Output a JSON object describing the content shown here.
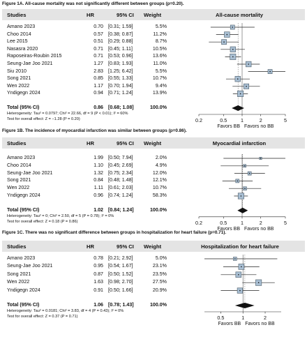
{
  "figures": [
    {
      "caption": "Figure 1A. All-cause mortality was not significantly different between groups (p=0.20).",
      "headers": {
        "study": "Studies",
        "hr": "HR",
        "ci": "95% CI",
        "weight": "Weight",
        "plot": "All-cause mortality"
      },
      "rows": [
        {
          "study": "Amano 2023",
          "hr": "0.70",
          "ci": "[0.31; 1.59]",
          "weight": "5.5%"
        },
        {
          "study": "Choo 2014",
          "hr": "0.57",
          "ci": "[0.38; 0.87]",
          "weight": "11.2%"
        },
        {
          "study": "Lee 2015",
          "hr": "0.51",
          "ci": "[0.29; 0.88]",
          "weight": "8.7%"
        },
        {
          "study": "Nasasra 2020",
          "hr": "0.71",
          "ci": "[0.45; 1.11]",
          "weight": "10.5%"
        },
        {
          "study": "Raposeiras-Roubin 2015",
          "hr": "0.71",
          "ci": "[0.53; 0.96]",
          "weight": "13.6%"
        },
        {
          "study": "Seung-Jae Joo 2021",
          "hr": "1.27",
          "ci": "[0.83; 1.93]",
          "weight": "11.0%"
        },
        {
          "study": "Siu 2010",
          "hr": "2.83",
          "ci": "[1.25; 6.42]",
          "weight": "5.5%"
        },
        {
          "study": "Song 2021",
          "hr": "0.85",
          "ci": "[0.55; 1.33]",
          "weight": "10.7%"
        },
        {
          "study": "Wen 2022",
          "hr": "1.17",
          "ci": "[0.70; 1.94]",
          "weight": "9.4%"
        },
        {
          "study": "Yndigegn 2024",
          "hr": "0.94",
          "ci": "[0.71; 1.24]",
          "weight": "13.9%"
        }
      ],
      "total": {
        "study": "Total (95% CI)",
        "hr": "0.86",
        "ci": "[0.68; 1.08]",
        "weight": "100.0%"
      },
      "heterogeneity": "Heterogeneity: Tau² = 0.0797; Chi² = 22.66, df = 9 (P < 0.01); I² = 60%",
      "overall": "Test for overall effect: Z = −1.28 (P = 0.20)",
      "favors_left": "Favors BB",
      "favors_right": "Favors no BB"
    },
    {
      "caption": "Figure 1B. The incidence of myocardial infarction was similar between groups (p=0.86).",
      "headers": {
        "study": "Studies",
        "hr": "HR",
        "ci": "95% CI",
        "weight": "Weight",
        "plot": "Myocardial infarction"
      },
      "rows": [
        {
          "study": "Amano 2023",
          "hr": "1.99",
          "ci": "[0.50; 7.94]",
          "weight": "2.0%"
        },
        {
          "study": "Choo 2014",
          "hr": "1.10",
          "ci": "[0.45; 2.69]",
          "weight": "4.9%"
        },
        {
          "study": "Seung-Jae Joo 2021",
          "hr": "1.32",
          "ci": "[0.75; 2.34]",
          "weight": "12.0%"
        },
        {
          "study": "Song 2021",
          "hr": "0.84",
          "ci": "[0.48; 1.48]",
          "weight": "12.1%"
        },
        {
          "study": "Wen 2022",
          "hr": "1.11",
          "ci": "[0.61; 2.03]",
          "weight": "10.7%"
        },
        {
          "study": "Yndigegn 2024",
          "hr": "0.96",
          "ci": "[0.74; 1.24]",
          "weight": "58.3%"
        }
      ],
      "total": {
        "study": "Total (95% CI)",
        "hr": "1.02",
        "ci": "[0.84; 1.24]",
        "weight": "100.0%"
      },
      "heterogeneity": "Heterogeneity: Tau² = 0; Chi² = 2.50, df = 5 (P = 0.78); I² = 0%",
      "overall": "Test for overall effect: Z = 0.18 (P = 0.86)",
      "favors_left": "Favors BB",
      "favors_right": "Favors no BB"
    },
    {
      "caption": "Figure 1C. There was no significant difference between groups in hospitalization for heart failure (p=0.71).",
      "headers": {
        "study": "Studies",
        "hr": "HR",
        "ci": "95% CI",
        "weight": "Weight",
        "plot": "Hospitalization for heart failure"
      },
      "rows": [
        {
          "study": "Amano 2023",
          "hr": "0.78",
          "ci": "[0.21; 2.92]",
          "weight": "5.0%"
        },
        {
          "study": "Seung-Jae Joo 2021",
          "hr": "0.95",
          "ci": "[0.54; 1.67]",
          "weight": "23.1%"
        },
        {
          "study": "Song 2021",
          "hr": "0.87",
          "ci": "[0.50; 1.52]",
          "weight": "23.5%"
        },
        {
          "study": "Wen 2022",
          "hr": "1.63",
          "ci": "[0.98; 2.70]",
          "weight": "27.5%"
        },
        {
          "study": "Yndigegn 2024",
          "hr": "0.91",
          "ci": "[0.50; 1.66]",
          "weight": "20.9%"
        }
      ],
      "total": {
        "study": "Total (95% CI)",
        "hr": "1.06",
        "ci": "[0.78; 1.43]",
        "weight": "100.0%"
      },
      "heterogeneity": "Heterogeneity: Tau² = 0.0181; Chi² = 3.83, df = 4 (P = 0.43); I² = 0%",
      "overall": "Test for overall effect: Z = 0.37 (P = 0.71)",
      "favors_left": "Favors BB",
      "favors_right": "Favors no BB"
    }
  ],
  "chart_data": [
    {
      "type": "scatter",
      "title": "All-cause mortality",
      "xscale": "log",
      "xlim": [
        0.2,
        5
      ],
      "xticks": [
        0.2,
        0.5,
        1,
        2,
        5
      ],
      "xtick_labels": [
        "0.2",
        "0.5",
        "1",
        "2",
        "5"
      ],
      "reference_line": 1,
      "series": [
        {
          "hr": 0.7,
          "lo": 0.31,
          "hi": 1.59,
          "weight": 5.5
        },
        {
          "hr": 0.57,
          "lo": 0.38,
          "hi": 0.87,
          "weight": 11.2
        },
        {
          "hr": 0.51,
          "lo": 0.29,
          "hi": 0.88,
          "weight": 8.7
        },
        {
          "hr": 0.71,
          "lo": 0.45,
          "hi": 1.11,
          "weight": 10.5
        },
        {
          "hr": 0.71,
          "lo": 0.53,
          "hi": 0.96,
          "weight": 13.6
        },
        {
          "hr": 1.27,
          "lo": 0.83,
          "hi": 1.93,
          "weight": 11.0
        },
        {
          "hr": 2.83,
          "lo": 1.25,
          "hi": 6.42,
          "weight": 5.5
        },
        {
          "hr": 0.85,
          "lo": 0.55,
          "hi": 1.33,
          "weight": 10.7
        },
        {
          "hr": 1.17,
          "lo": 0.7,
          "hi": 1.94,
          "weight": 9.4
        },
        {
          "hr": 0.94,
          "lo": 0.71,
          "hi": 1.24,
          "weight": 13.9
        }
      ],
      "total": {
        "hr": 0.86,
        "lo": 0.68,
        "hi": 1.08
      }
    },
    {
      "type": "scatter",
      "title": "Myocardial infarction",
      "xscale": "log",
      "xlim": [
        0.2,
        5
      ],
      "xticks": [
        0.2,
        0.5,
        1,
        2,
        5
      ],
      "xtick_labels": [
        "0.2",
        "0.5",
        "1",
        "2",
        "5"
      ],
      "reference_line": 1,
      "series": [
        {
          "hr": 1.99,
          "lo": 0.5,
          "hi": 7.94,
          "weight": 2.0
        },
        {
          "hr": 1.1,
          "lo": 0.45,
          "hi": 2.69,
          "weight": 4.9
        },
        {
          "hr": 1.32,
          "lo": 0.75,
          "hi": 2.34,
          "weight": 12.0
        },
        {
          "hr": 0.84,
          "lo": 0.48,
          "hi": 1.48,
          "weight": 12.1
        },
        {
          "hr": 1.11,
          "lo": 0.61,
          "hi": 2.03,
          "weight": 10.7
        },
        {
          "hr": 0.96,
          "lo": 0.74,
          "hi": 1.24,
          "weight": 58.3
        }
      ],
      "total": {
        "hr": 1.02,
        "lo": 0.84,
        "hi": 1.24
      }
    },
    {
      "type": "scatter",
      "title": "Hospitalization for heart failure",
      "xscale": "log",
      "xlim": [
        0.3,
        3.3
      ],
      "xticks": [
        0.5,
        1,
        2
      ],
      "xtick_labels": [
        "0.5",
        "1",
        "2"
      ],
      "reference_line": 1,
      "series": [
        {
          "hr": 0.78,
          "lo": 0.21,
          "hi": 2.92,
          "weight": 5.0
        },
        {
          "hr": 0.95,
          "lo": 0.54,
          "hi": 1.67,
          "weight": 23.1
        },
        {
          "hr": 0.87,
          "lo": 0.5,
          "hi": 1.52,
          "weight": 23.5
        },
        {
          "hr": 1.63,
          "lo": 0.98,
          "hi": 2.7,
          "weight": 27.5
        },
        {
          "hr": 0.91,
          "lo": 0.5,
          "hi": 1.66,
          "weight": 20.9
        }
      ],
      "total": {
        "hr": 1.06,
        "lo": 0.78,
        "hi": 1.43
      }
    }
  ]
}
